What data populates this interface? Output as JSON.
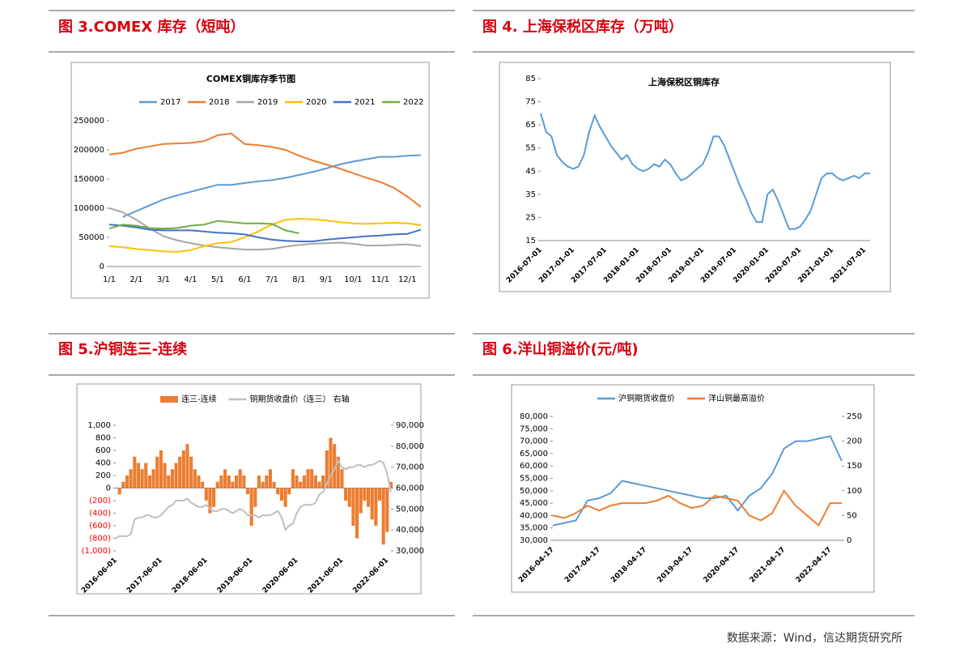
{
  "panels": [
    {
      "title": "图 3.COMEX 库存（短吨）"
    },
    {
      "title": "图 4.  上海保税区库存（万吨）"
    },
    {
      "title": "图 5.沪铜连三-连续"
    },
    {
      "title": "图 6.洋山铜溢价(元/吨)"
    }
  ],
  "source": "数据来源：Wind，信达期货研究所",
  "chart_data": [
    {
      "type": "line",
      "title": "COMEX铜库存季节图",
      "categories": [
        "1/1",
        null,
        "2/1",
        null,
        "3/1",
        null,
        "4/1",
        null,
        "5/1",
        null,
        "6/1",
        null,
        "7/1",
        null,
        "8/1",
        null,
        "9/1",
        null,
        "10/1",
        null,
        "11/1",
        null,
        "12/1",
        null
      ],
      "series": [
        {
          "name": "2017",
          "color": "#5b9bd5",
          "values": [
            null,
            85000,
            95000,
            105000,
            115000,
            122000,
            128000,
            134000,
            140000,
            140000,
            143000,
            146000,
            148000,
            152000,
            157000,
            162000,
            168000,
            175000,
            180000,
            184000,
            188000,
            188000,
            190000,
            191000
          ]
        },
        {
          "name": "2018",
          "color": "#ed7d31",
          "values": [
            192000,
            195000,
            202000,
            206000,
            210000,
            211000,
            212000,
            215000,
            225000,
            228000,
            210000,
            208000,
            205000,
            200000,
            190000,
            182000,
            175000,
            168000,
            160000,
            152000,
            145000,
            135000,
            120000,
            102000
          ]
        },
        {
          "name": "2019",
          "color": "#a5a5a5",
          "values": [
            100000,
            93000,
            80000,
            65000,
            52000,
            45000,
            40000,
            36000,
            33000,
            31000,
            29000,
            29000,
            30000,
            34000,
            37000,
            39000,
            40000,
            41000,
            39000,
            36000,
            36000,
            37000,
            38000,
            35000
          ]
        },
        {
          "name": "2020",
          "color": "#ffc000",
          "values": [
            35000,
            33000,
            30000,
            28000,
            26000,
            25000,
            28000,
            35000,
            40000,
            42000,
            50000,
            60000,
            72000,
            80000,
            82000,
            81000,
            79000,
            76000,
            74000,
            73000,
            74000,
            75000,
            74000,
            71000
          ]
        },
        {
          "name": "2021",
          "color": "#4472c4",
          "values": [
            72000,
            70000,
            67000,
            63000,
            62000,
            62000,
            62000,
            60000,
            58000,
            57000,
            55000,
            50000,
            46000,
            44000,
            43000,
            43000,
            46000,
            48000,
            50000,
            52000,
            53000,
            55000,
            56000,
            63000
          ]
        },
        {
          "name": "2022",
          "color": "#70ad47",
          "values": [
            65000,
            72000,
            70000,
            66000,
            65000,
            66000,
            70000,
            72000,
            78000,
            76000,
            74000,
            74000,
            73000,
            62000,
            57000,
            null,
            null,
            null,
            null,
            null,
            null,
            null,
            null,
            null
          ]
        }
      ],
      "ylim": [
        0,
        250000
      ],
      "yticks": [
        0,
        50000,
        100000,
        150000,
        200000,
        250000
      ],
      "legend": "top"
    },
    {
      "type": "line",
      "title": "上海保税区铜库存",
      "categories": [
        "2016-07-01",
        null,
        null,
        null,
        null,
        null,
        "2017-01-01",
        null,
        null,
        null,
        null,
        null,
        "2017-07-01",
        null,
        null,
        null,
        null,
        null,
        "2018-01-01",
        null,
        null,
        null,
        null,
        null,
        "2018-07-01",
        null,
        null,
        null,
        null,
        null,
        "2019-01-01",
        null,
        null,
        null,
        null,
        null,
        "2019-07-01",
        null,
        null,
        null,
        null,
        null,
        "2020-01-01",
        null,
        null,
        null,
        null,
        null,
        "2020-07-01",
        null,
        null,
        null,
        null,
        null,
        "2021-01-01",
        null,
        null,
        null,
        null,
        null,
        "2021-07-01",
        null
      ],
      "series": [
        {
          "name": "上海保税区铜库存",
          "color": "#5b9bd5",
          "values": [
            70,
            62,
            60,
            52,
            49,
            47,
            46,
            47,
            52,
            62,
            69,
            64,
            60,
            56,
            53,
            50,
            52,
            48,
            46,
            45,
            46,
            48,
            47,
            50,
            48,
            44,
            41,
            42,
            44,
            46,
            48,
            53,
            60,
            60,
            56,
            50,
            44,
            38,
            33,
            27,
            23,
            23,
            35,
            37,
            32,
            26,
            20,
            20,
            21,
            24,
            28,
            35,
            42,
            44,
            44,
            42,
            41,
            42,
            43,
            42,
            44,
            44
          ]
        }
      ],
      "ylim": [
        15,
        85
      ],
      "yticks": [
        15,
        25,
        35,
        45,
        55,
        65,
        75,
        85
      ]
    },
    {
      "type": "combo",
      "categories": [
        "2016-06-01",
        null,
        null,
        null,
        null,
        null,
        null,
        null,
        null,
        null,
        null,
        null,
        "2017-06-01",
        null,
        null,
        null,
        null,
        null,
        null,
        null,
        null,
        null,
        null,
        null,
        "2018-06-01",
        null,
        null,
        null,
        null,
        null,
        null,
        null,
        null,
        null,
        null,
        null,
        "2019-06-01",
        null,
        null,
        null,
        null,
        null,
        null,
        null,
        null,
        null,
        null,
        null,
        "2020-06-01",
        null,
        null,
        null,
        null,
        null,
        null,
        null,
        null,
        null,
        null,
        null,
        "2021-06-01",
        null,
        null,
        null,
        null,
        null,
        null,
        null,
        null,
        null,
        null,
        null,
        "2022-06-01",
        null
      ],
      "series": [
        {
          "name": "连三-连续",
          "type": "bar",
          "color": "#ed7d31",
          "values": [
            0,
            -100,
            100,
            200,
            300,
            500,
            400,
            300,
            400,
            200,
            300,
            500,
            600,
            400,
            200,
            300,
            400,
            500,
            600,
            700,
            500,
            300,
            200,
            100,
            -200,
            -400,
            -300,
            100,
            200,
            300,
            200,
            100,
            200,
            300,
            200,
            -100,
            -600,
            -300,
            200,
            100,
            200,
            300,
            100,
            -100,
            -200,
            -300,
            -100,
            300,
            200,
            100,
            200,
            300,
            300,
            200,
            100,
            200,
            600,
            800,
            700,
            500,
            300,
            -200,
            -300,
            -600,
            -800,
            -400,
            -200,
            -300,
            -500,
            -600,
            -200,
            -900,
            -700,
            100
          ]
        },
        {
          "name": "铜期货收盘价（连三） 右轴",
          "type": "line",
          "axis": "y2",
          "color": "#bfbfbf",
          "values": [
            36000,
            37000,
            37000,
            37000,
            38000,
            45000,
            46000,
            46000,
            47000,
            47000,
            46000,
            46000,
            47000,
            49000,
            51000,
            52000,
            54000,
            54000,
            54000,
            55000,
            53000,
            52000,
            51000,
            51000,
            52000,
            50000,
            49000,
            49000,
            50000,
            50000,
            49000,
            48000,
            49000,
            50000,
            49000,
            47000,
            47000,
            47000,
            46000,
            47000,
            47000,
            47000,
            48000,
            49000,
            46000,
            40000,
            42000,
            43000,
            48000,
            51000,
            52000,
            52000,
            52000,
            53000,
            57000,
            58000,
            62000,
            66000,
            69000,
            73000,
            70000,
            69000,
            70000,
            70000,
            71000,
            71000,
            70000,
            71000,
            71000,
            72000,
            73000,
            72000,
            67000,
            58000
          ]
        }
      ],
      "ylim": [
        -1000,
        1000
      ],
      "yticks": [
        {
          "value": -1000,
          "label": "(1,000)"
        },
        {
          "value": -800,
          "label": "(800)"
        },
        {
          "value": -600,
          "label": "(600)"
        },
        {
          "value": -400,
          "label": "(400)"
        },
        {
          "value": -200,
          "label": "(200)"
        },
        0,
        200,
        400,
        600,
        800,
        {
          "value": 1000,
          "label": "1,000"
        }
      ],
      "negative_tick_color": "#ff0000",
      "y2lim": [
        30000,
        90000
      ],
      "y2ticks": [
        {
          "value": 30000,
          "label": "30,000"
        },
        {
          "value": 40000,
          "label": "40,000"
        },
        {
          "value": 50000,
          "label": "50,000"
        },
        {
          "value": 60000,
          "label": "60,000"
        },
        {
          "value": 70000,
          "label": "70,000"
        },
        {
          "value": 80000,
          "label": "80,000"
        },
        {
          "value": 90000,
          "label": "90,000"
        }
      ],
      "legend": "top"
    },
    {
      "type": "line",
      "categories": [
        "2016-04-17",
        null,
        null,
        null,
        "2017-04-17",
        null,
        null,
        null,
        "2018-04-17",
        null,
        null,
        null,
        "2019-04-17",
        null,
        null,
        null,
        "2020-04-17",
        null,
        null,
        null,
        "2021-04-17",
        null,
        null,
        null,
        "2022-04-17",
        null
      ],
      "series": [
        {
          "name": "沪铜期货收盘价",
          "color": "#5b9bd5",
          "values": [
            36000,
            37000,
            38000,
            46000,
            47000,
            49000,
            54000,
            53000,
            52000,
            51000,
            50000,
            49000,
            48000,
            47000,
            47000,
            48000,
            42000,
            48000,
            51000,
            57000,
            67000,
            70000,
            70000,
            71000,
            72000,
            62000
          ]
        },
        {
          "name": "洋山铜最高溢价",
          "axis": "y2",
          "color": "#ed7d31",
          "values": [
            50,
            45,
            55,
            70,
            60,
            70,
            75,
            75,
            75,
            80,
            90,
            75,
            65,
            70,
            90,
            85,
            80,
            50,
            40,
            55,
            100,
            70,
            50,
            30,
            75,
            75
          ]
        }
      ],
      "ylim": [
        30000,
        80000
      ],
      "yticks": [
        {
          "value": 30000,
          "label": "30,000"
        },
        {
          "value": 35000,
          "label": "35,000"
        },
        {
          "value": 40000,
          "label": "40,000"
        },
        {
          "value": 45000,
          "label": "45,000"
        },
        {
          "value": 50000,
          "label": "50,000"
        },
        {
          "value": 55000,
          "label": "55,000"
        },
        {
          "value": 60000,
          "label": "60,000"
        },
        {
          "value": 65000,
          "label": "65,000"
        },
        {
          "value": 70000,
          "label": "70,000"
        },
        {
          "value": 75000,
          "label": "75,000"
        },
        {
          "value": 80000,
          "label": "80,000"
        }
      ],
      "y2lim": [
        0,
        250
      ],
      "y2ticks": [
        0,
        50,
        100,
        150,
        200,
        250
      ],
      "legend": "top"
    }
  ]
}
